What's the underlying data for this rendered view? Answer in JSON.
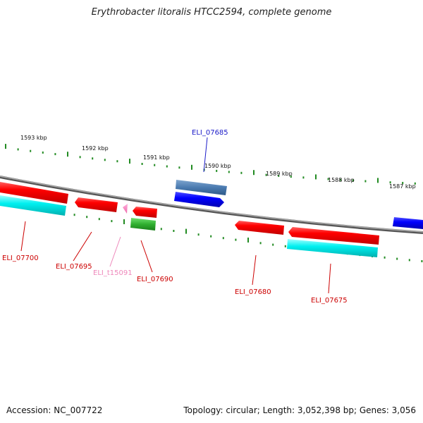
{
  "title": "Erythrobacter litoralis HTCC2594, complete genome",
  "footer": {
    "accession": "Accession: NC_007722",
    "summary": "Topology: circular; Length: 3,052,398 bp; Genes: 3,056"
  },
  "ruler": {
    "labels": [
      "1593 kbp",
      "1592 kbp",
      "1591 kbp",
      "1590 kbp",
      "1589 kbp",
      "1588 kbp",
      "1587 kbp"
    ]
  },
  "genes": [
    {
      "label": "ELI_07685",
      "color": "#4a7ab0",
      "label_color": "#1a1ac8"
    },
    {
      "label": "ELI_07700",
      "color": "#ff0000",
      "label_color": "#cc0000"
    },
    {
      "label": "ELI_07695",
      "color": "#ff0000",
      "label_color": "#cc0000"
    },
    {
      "label": "ELI_t15091",
      "color": "#ff88cc",
      "label_color": "#ee88bb"
    },
    {
      "label": "ELI_07690",
      "color": "#ff0000",
      "label_color": "#cc0000"
    },
    {
      "label": "ELI_07680",
      "color": "#ff0000",
      "label_color": "#cc0000"
    },
    {
      "label": "ELI_07675",
      "color": "#ff0000",
      "label_color": "#cc0000"
    }
  ],
  "colors": {
    "cds_forward": "#0000ff",
    "cds_reverse": "#ff0000",
    "rna": "#00e0e0",
    "gc_skew": "#2ca02c",
    "backbone": "#808080",
    "ticks": "#228b22"
  }
}
